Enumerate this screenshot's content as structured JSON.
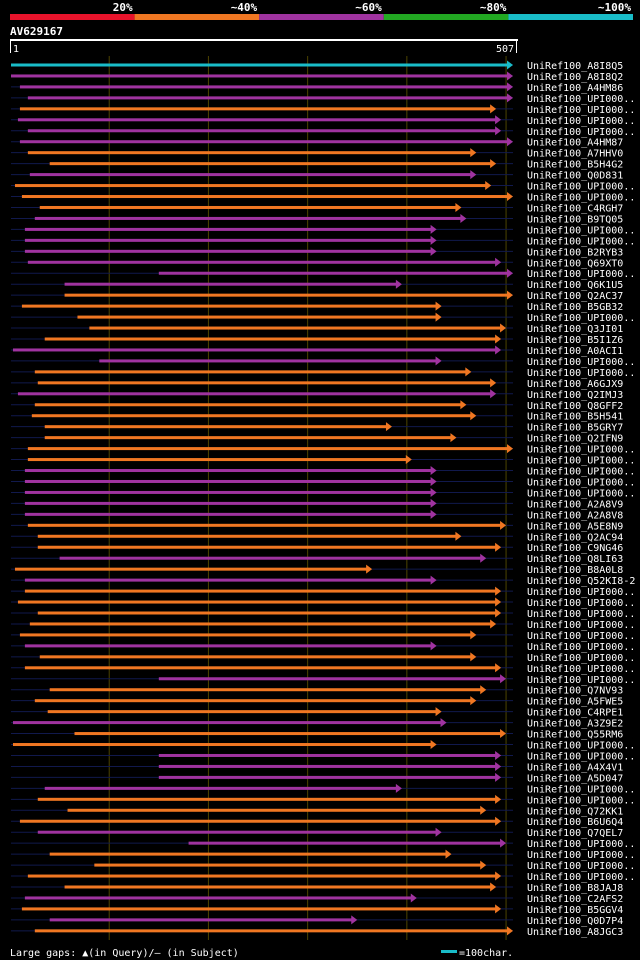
{
  "chart_data": {
    "type": "alignment-overview",
    "title": "AV629167",
    "scale": {
      "start": "1",
      "end": "507",
      "length": 507
    },
    "identity_legend": [
      {
        "label": "20%",
        "color": "#e8132b"
      },
      {
        "label": "~40%",
        "color": "#f07722"
      },
      {
        "label": "~60%",
        "color": "#a033a0"
      },
      {
        "label": "~80%",
        "color": "#22a822"
      },
      {
        "label": "~100%",
        "color": "#19bcc8"
      }
    ],
    "footer": {
      "gaps_text": "Large gaps: ▲(in Query)/— (in Subject)",
      "scale_text": "=100char.",
      "scale_color": "#19bcc8"
    },
    "hits": [
      {
        "name": "UniRef100_A8I8Q5",
        "start": 1,
        "end": 507,
        "color": "#19bcc8"
      },
      {
        "name": "UniRef100_A8I8Q2",
        "start": 1,
        "end": 507,
        "color": "#a033a0"
      },
      {
        "name": "UniRef100_A4HM86",
        "start": 10,
        "end": 507,
        "color": "#a033a0"
      },
      {
        "name": "UniRef100_UPI000..",
        "start": 18,
        "end": 507,
        "color": "#a033a0"
      },
      {
        "name": "UniRef100_UPI000..",
        "start": 10,
        "end": 490,
        "color": "#f07722"
      },
      {
        "name": "UniRef100_UPI000..",
        "start": 8,
        "end": 495,
        "color": "#a033a0"
      },
      {
        "name": "UniRef100_UPI000..",
        "start": 18,
        "end": 495,
        "color": "#a033a0"
      },
      {
        "name": "UniRef100_A4HM87",
        "start": 10,
        "end": 507,
        "color": "#a033a0"
      },
      {
        "name": "UniRef100_A7HHV0",
        "start": 18,
        "end": 470,
        "color": "#f07722"
      },
      {
        "name": "UniRef100_B5H4G2",
        "start": 40,
        "end": 490,
        "color": "#f07722"
      },
      {
        "name": "UniRef100_Q0D831",
        "start": 20,
        "end": 470,
        "color": "#a033a0"
      },
      {
        "name": "UniRef100_UPI000..",
        "start": 5,
        "end": 485,
        "color": "#f07722"
      },
      {
        "name": "UniRef100_UPI000..",
        "start": 12,
        "end": 507,
        "color": "#f07722"
      },
      {
        "name": "UniRef100_C4RGH7",
        "start": 30,
        "end": 455,
        "color": "#f07722"
      },
      {
        "name": "UniRef100_B9TQ05",
        "start": 25,
        "end": 460,
        "color": "#a033a0"
      },
      {
        "name": "UniRef100_UPI000..",
        "start": 15,
        "end": 430,
        "color": "#a033a0"
      },
      {
        "name": "UniRef100_UPI000..",
        "start": 15,
        "end": 430,
        "color": "#a033a0"
      },
      {
        "name": "UniRef100_B2RYB3",
        "start": 15,
        "end": 430,
        "color": "#a033a0"
      },
      {
        "name": "UniRef100_Q69XT0",
        "start": 18,
        "end": 495,
        "color": "#a033a0"
      },
      {
        "name": "UniRef100_UPI000..",
        "start": 150,
        "end": 507,
        "color": "#a033a0"
      },
      {
        "name": "UniRef100_Q6K1U5",
        "start": 55,
        "end": 395,
        "color": "#a033a0"
      },
      {
        "name": "UniRef100_Q2AC37",
        "start": 55,
        "end": 507,
        "color": "#f07722"
      },
      {
        "name": "UniRef100_B5GB32",
        "start": 12,
        "end": 435,
        "color": "#f07722"
      },
      {
        "name": "UniRef100_UPI000..",
        "start": 68,
        "end": 435,
        "color": "#f07722"
      },
      {
        "name": "UniRef100_Q3JI01",
        "start": 80,
        "end": 500,
        "color": "#f07722"
      },
      {
        "name": "UniRef100_B5I1Z6",
        "start": 35,
        "end": 495,
        "color": "#f07722"
      },
      {
        "name": "UniRef100_A0ACI1",
        "start": 3,
        "end": 495,
        "color": "#a033a0"
      },
      {
        "name": "UniRef100_UPI000..",
        "start": 90,
        "end": 435,
        "color": "#a033a0"
      },
      {
        "name": "UniRef100_UPI000..",
        "start": 25,
        "end": 465,
        "color": "#f07722"
      },
      {
        "name": "UniRef100_A6GJX9",
        "start": 28,
        "end": 490,
        "color": "#f07722"
      },
      {
        "name": "UniRef100_Q2IMJ3",
        "start": 8,
        "end": 490,
        "color": "#a033a0"
      },
      {
        "name": "UniRef100_Q8GFF2",
        "start": 25,
        "end": 460,
        "color": "#f07722"
      },
      {
        "name": "UniRef100_B5H541",
        "start": 22,
        "end": 470,
        "color": "#f07722"
      },
      {
        "name": "UniRef100_B5GRY7",
        "start": 35,
        "end": 385,
        "color": "#f07722"
      },
      {
        "name": "UniRef100_Q2IFN9",
        "start": 35,
        "end": 450,
        "color": "#f07722"
      },
      {
        "name": "UniRef100_UPI000..",
        "start": 18,
        "end": 507,
        "color": "#f07722"
      },
      {
        "name": "UniRef100_UPI000..",
        "start": 18,
        "end": 405,
        "color": "#f07722"
      },
      {
        "name": "UniRef100_UPI000..",
        "start": 15,
        "end": 430,
        "color": "#a033a0"
      },
      {
        "name": "UniRef100_UPI000..",
        "start": 15,
        "end": 430,
        "color": "#a033a0"
      },
      {
        "name": "UniRef100_UPI000..",
        "start": 15,
        "end": 430,
        "color": "#a033a0"
      },
      {
        "name": "UniRef100_A2A8V9",
        "start": 15,
        "end": 430,
        "color": "#a033a0"
      },
      {
        "name": "UniRef100_A2A8V8",
        "start": 15,
        "end": 430,
        "color": "#a033a0"
      },
      {
        "name": "UniRef100_A5E8N9",
        "start": 18,
        "end": 500,
        "color": "#f07722"
      },
      {
        "name": "UniRef100_Q2AC94",
        "start": 28,
        "end": 455,
        "color": "#f07722"
      },
      {
        "name": "UniRef100_C9NG46",
        "start": 28,
        "end": 495,
        "color": "#f07722"
      },
      {
        "name": "UniRef100_Q8LI63",
        "start": 50,
        "end": 480,
        "color": "#a033a0"
      },
      {
        "name": "UniRef100_B8A0L8",
        "start": 5,
        "end": 365,
        "color": "#f07722"
      },
      {
        "name": "UniRef100_Q52KI8-2",
        "start": 15,
        "end": 430,
        "color": "#a033a0"
      },
      {
        "name": "UniRef100_UPI000..",
        "start": 15,
        "end": 495,
        "color": "#f07722"
      },
      {
        "name": "UniRef100_UPI000..",
        "start": 8,
        "end": 495,
        "color": "#f07722"
      },
      {
        "name": "UniRef100_UPI000..",
        "start": 28,
        "end": 495,
        "color": "#f07722"
      },
      {
        "name": "UniRef100_UPI000..",
        "start": 20,
        "end": 490,
        "color": "#f07722"
      },
      {
        "name": "UniRef100_UPI000..",
        "start": 10,
        "end": 470,
        "color": "#f07722"
      },
      {
        "name": "UniRef100_UPI000..",
        "start": 15,
        "end": 430,
        "color": "#a033a0"
      },
      {
        "name": "UniRef100_UPI000..",
        "start": 30,
        "end": 470,
        "color": "#f07722"
      },
      {
        "name": "UniRef100_UPI000..",
        "start": 15,
        "end": 495,
        "color": "#f07722"
      },
      {
        "name": "UniRef100_UPI000..",
        "start": 150,
        "end": 500,
        "color": "#a033a0"
      },
      {
        "name": "UniRef100_Q7NV93",
        "start": 40,
        "end": 480,
        "color": "#f07722"
      },
      {
        "name": "UniRef100_A5FWE5",
        "start": 25,
        "end": 470,
        "color": "#f07722"
      },
      {
        "name": "UniRef100_C4RPE1",
        "start": 38,
        "end": 435,
        "color": "#f07722"
      },
      {
        "name": "UniRef100_A3Z9E2",
        "start": 3,
        "end": 440,
        "color": "#a033a0"
      },
      {
        "name": "UniRef100_Q55RM6",
        "start": 65,
        "end": 500,
        "color": "#f07722"
      },
      {
        "name": "UniRef100_UPI000..",
        "start": 3,
        "end": 430,
        "color": "#f07722"
      },
      {
        "name": "UniRef100_UPI000..",
        "start": 150,
        "end": 495,
        "color": "#a033a0"
      },
      {
        "name": "UniRef100_A4X4V1",
        "start": 150,
        "end": 495,
        "color": "#a033a0"
      },
      {
        "name": "UniRef100_A5D047",
        "start": 150,
        "end": 495,
        "color": "#a033a0"
      },
      {
        "name": "UniRef100_UPI000..",
        "start": 35,
        "end": 395,
        "color": "#a033a0"
      },
      {
        "name": "UniRef100_UPI000..",
        "start": 28,
        "end": 495,
        "color": "#f07722"
      },
      {
        "name": "UniRef100_Q72KK1",
        "start": 58,
        "end": 480,
        "color": "#f07722"
      },
      {
        "name": "UniRef100_B6U6Q4",
        "start": 10,
        "end": 495,
        "color": "#f07722"
      },
      {
        "name": "UniRef100_Q7QEL7",
        "start": 28,
        "end": 435,
        "color": "#a033a0"
      },
      {
        "name": "UniRef100_UPI000..",
        "start": 180,
        "end": 500,
        "color": "#a033a0"
      },
      {
        "name": "UniRef100_UPI000..",
        "start": 40,
        "end": 445,
        "color": "#f07722"
      },
      {
        "name": "UniRef100_UPI000..",
        "start": 85,
        "end": 480,
        "color": "#f07722"
      },
      {
        "name": "UniRef100_UPI000..",
        "start": 18,
        "end": 495,
        "color": "#f07722"
      },
      {
        "name": "UniRef100_B8JAJ8",
        "start": 55,
        "end": 490,
        "color": "#f07722"
      },
      {
        "name": "UniRef100_C2AFS2",
        "start": 15,
        "end": 410,
        "color": "#a033a0"
      },
      {
        "name": "UniRef100_B5GGV4",
        "start": 12,
        "end": 495,
        "color": "#f07722"
      },
      {
        "name": "UniRef100_Q0D7P4",
        "start": 40,
        "end": 350,
        "color": "#a033a0"
      },
      {
        "name": "UniRef100_A8JGC3",
        "start": 25,
        "end": 507,
        "color": "#f07722"
      }
    ]
  }
}
